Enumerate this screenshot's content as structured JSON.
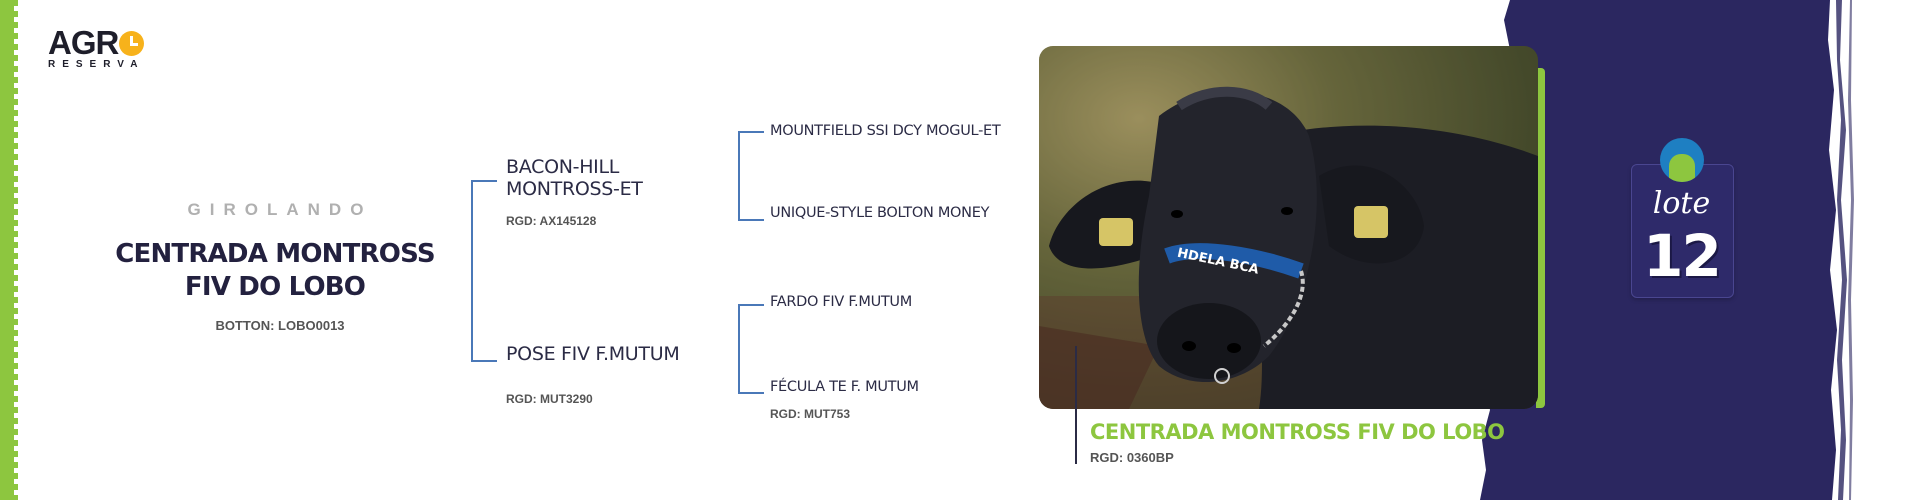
{
  "brand": {
    "top": "AGR",
    "bottom": "RESERVA"
  },
  "animal": {
    "breed": "GIROLANDO",
    "name_line1": "CENTRADA MONTROSS",
    "name_line2": "FIV DO LOBO",
    "botton": "BOTTON: LOBO0013"
  },
  "pedigree": {
    "sire": {
      "name_line1": "BACON-HILL",
      "name_line2": "MONTROSS-ET",
      "rgd": "RGD: AX145128"
    },
    "dam": {
      "name": "POSE FIV F.MUTUM",
      "rgd": "RGD: MUT3290"
    },
    "sire_sire": "MOUNTFIELD SSI DCY MOGUL-ET",
    "sire_dam": "UNIQUE-STYLE BOLTON MONEY",
    "dam_sire": "FARDO FIV F.MUTUM",
    "dam_dam": {
      "name": "FÉCULA TE F. MUTUM",
      "rgd": "RGD: MUT753"
    }
  },
  "featured": {
    "name": "CENTRADA MONTROSS FIV DO LOBO",
    "rgd": "RGD: 0360BP",
    "halter_text": "HDELA BCA"
  },
  "lote": {
    "label": "lote",
    "number": "12"
  },
  "colors": {
    "accent_green": "#8dc63f",
    "navy": "#23213f",
    "purple": "#2b2760",
    "line_blue": "#4a78b8"
  }
}
